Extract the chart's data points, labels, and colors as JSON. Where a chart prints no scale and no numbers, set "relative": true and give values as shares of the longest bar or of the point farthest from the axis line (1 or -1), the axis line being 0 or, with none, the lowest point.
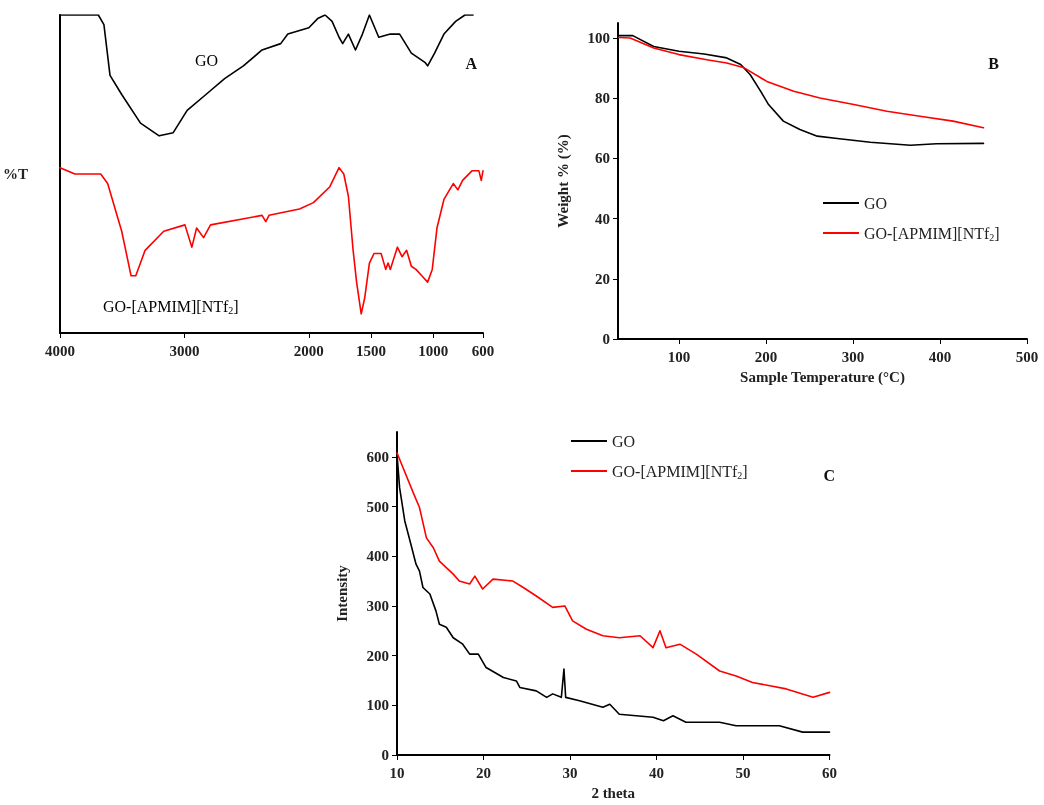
{
  "chart_data": [
    {
      "type": "line",
      "title": "A",
      "ylabel": "%T",
      "relative": true,
      "legend": false,
      "tick_labels": "x",
      "grid": false,
      "marker": "none",
      "xlim": [
        4000,
        600
      ],
      "xticks": [
        4000,
        3000,
        2000,
        1500,
        1000,
        600
      ],
      "series": [
        {
          "name": "GO",
          "color": "#000000",
          "x": [
            4000,
            3692,
            3647,
            3598,
            3504,
            3353,
            3203,
            3090,
            2978,
            2827,
            2677,
            2526,
            2376,
            2226,
            2169,
            2000,
            1925,
            1869,
            1813,
            1757,
            1728,
            1682,
            1625,
            1569,
            1513,
            1438,
            1345,
            1270,
            1176,
            1064,
            1045,
            989,
            914,
            820,
            745,
            680
          ],
          "values": [
            1.0,
            1.0,
            0.97,
            0.81,
            0.75,
            0.66,
            0.62,
            0.63,
            0.7,
            0.75,
            0.8,
            0.84,
            0.89,
            0.91,
            0.94,
            0.96,
            0.99,
            1.0,
            0.98,
            0.93,
            0.91,
            0.94,
            0.89,
            0.94,
            1.0,
            0.93,
            0.94,
            0.94,
            0.88,
            0.85,
            0.84,
            0.88,
            0.94,
            0.98,
            1.0,
            1.0
          ]
        },
        {
          "name": "GO-[APMIM][NTf$_{2}$]",
          "color": "#ff0000",
          "x": [
            4000,
            3880,
            3673,
            3617,
            3504,
            3429,
            3391,
            3316,
            3166,
            2996,
            2940,
            2902,
            2846,
            2790,
            2376,
            2346,
            2320,
            2075,
            1963,
            1831,
            1757,
            1719,
            1682,
            1644,
            1616,
            1579,
            1551,
            1513,
            1476,
            1419,
            1382,
            1363,
            1345,
            1288,
            1251,
            1214,
            1176,
            1139,
            1092,
            1045,
            1008,
            970,
            914,
            839,
            802,
            764,
            689,
            633,
            614,
            600
          ],
          "values": [
            0.52,
            0.5,
            0.5,
            0.47,
            0.32,
            0.18,
            0.18,
            0.26,
            0.32,
            0.34,
            0.27,
            0.33,
            0.3,
            0.34,
            0.37,
            0.35,
            0.37,
            0.39,
            0.41,
            0.46,
            0.52,
            0.5,
            0.43,
            0.26,
            0.16,
            0.06,
            0.11,
            0.22,
            0.25,
            0.25,
            0.2,
            0.22,
            0.2,
            0.27,
            0.24,
            0.26,
            0.21,
            0.2,
            0.18,
            0.16,
            0.2,
            0.33,
            0.42,
            0.47,
            0.45,
            0.48,
            0.51,
            0.51,
            0.48,
            0.51
          ]
        }
      ]
    },
    {
      "type": "line",
      "title": "B",
      "xlabel": "Sample Temperature (°C)",
      "ylabel": "Weight % (%)",
      "legend": "right",
      "grid": false,
      "marker": "none",
      "xlim": [
        30,
        500
      ],
      "xticks": [
        100,
        200,
        300,
        400,
        500
      ],
      "ylim": [
        0,
        105
      ],
      "yticks": [
        0,
        20,
        40,
        60,
        80,
        100
      ],
      "series": [
        {
          "name": "GO",
          "color": "#000000",
          "x": [
            31,
            47,
            71,
            100,
            129,
            155,
            171,
            182,
            194,
            203,
            220,
            239,
            259,
            282,
            320,
            366,
            396,
            450
          ],
          "values": [
            100.8,
            100.8,
            97.2,
            95.6,
            94.7,
            93.4,
            91.2,
            87.8,
            82.3,
            77.9,
            72.4,
            69.6,
            67.4,
            66.6,
            65.4,
            64.4,
            64.9,
            65.0
          ]
        },
        {
          "name": "GO-[APMIM][NTf$_{2}$]",
          "color": "#ff0000",
          "x": [
            31,
            44,
            71,
            100,
            132,
            155,
            175,
            201,
            232,
            262,
            301,
            339,
            377,
            415,
            450
          ],
          "values": [
            100.2,
            100,
            96.7,
            94.5,
            92.8,
            91.7,
            90.1,
            85.6,
            82.3,
            80.1,
            77.9,
            75.7,
            74.0,
            72.4,
            70.2
          ]
        }
      ]
    },
    {
      "type": "line",
      "title": "C",
      "xlabel": "2 theta",
      "ylabel": "Intensity",
      "legend": "top",
      "grid": false,
      "marker": "none",
      "xlim": [
        10,
        60
      ],
      "xticks": [
        10,
        20,
        30,
        40,
        50,
        60
      ],
      "ylim": [
        0,
        650
      ],
      "yticks": [
        0,
        100,
        200,
        300,
        400,
        500,
        600
      ],
      "series": [
        {
          "name": "GO",
          "color": "#000000",
          "x": [
            10,
            10.3,
            10.9,
            11.5,
            12.2,
            12.6,
            13.0,
            13.8,
            14.5,
            14.9,
            15.7,
            16.5,
            17.6,
            18.4,
            19.4,
            20.3,
            22.3,
            23.8,
            24.2,
            26.1,
            27.3,
            28.0,
            29.0,
            29.3,
            29.5,
            31.1,
            33.8,
            34.6,
            35.7,
            39.6,
            40.8,
            41.9,
            43.4,
            47.3,
            49.2,
            54.2,
            56.9,
            60
          ],
          "values": [
            605,
            538,
            471,
            431,
            384,
            370,
            337,
            324,
            290,
            263,
            257,
            236,
            223,
            203,
            203,
            176,
            156,
            149,
            136,
            129,
            116,
            123,
            116,
            173,
            116,
            109,
            96,
            102,
            82,
            76,
            69,
            79,
            66,
            66,
            59,
            59,
            46,
            46
          ]
        },
        {
          "name": "GO-[APMIM][NTf$_{2}$]",
          "color": "#ff0000",
          "x": [
            10,
            10.7,
            11.8,
            12.6,
            13.4,
            14.2,
            14.9,
            16.5,
            17.2,
            18.4,
            19.0,
            19.9,
            21.1,
            23.4,
            24.6,
            26.1,
            28.0,
            29.4,
            30.3,
            31.9,
            33.8,
            35.7,
            38.1,
            39.6,
            40.4,
            41.1,
            42.7,
            44.6,
            47.3,
            49.2,
            51.1,
            55.0,
            58.1,
            60
          ],
          "values": [
            608,
            578,
            531,
            498,
            437,
            417,
            390,
            364,
            350,
            344,
            360,
            334,
            354,
            350,
            337,
            320,
            297,
            300,
            270,
            253,
            240,
            236,
            240,
            216,
            250,
            216,
            223,
            203,
            169,
            159,
            146,
            133,
            116,
            126
          ]
        }
      ]
    }
  ]
}
